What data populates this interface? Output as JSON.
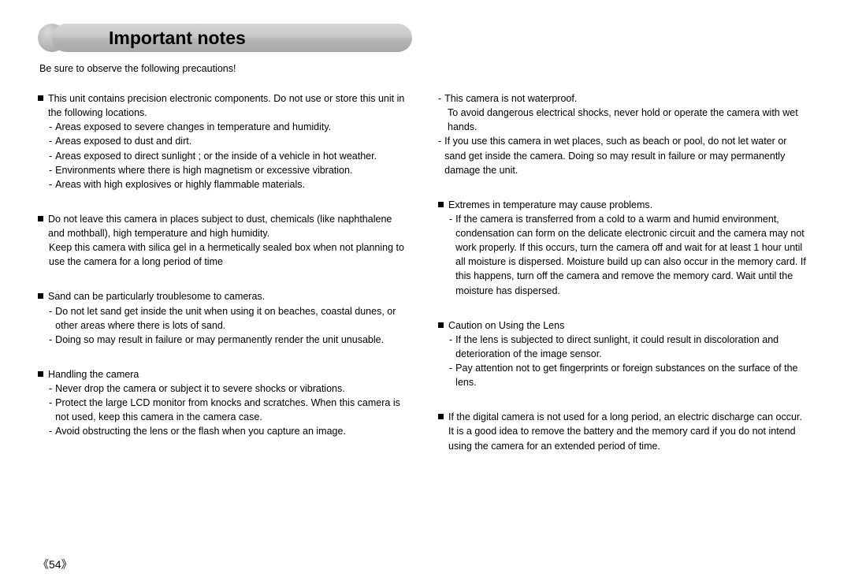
{
  "title": "Important notes",
  "intro": "Be sure to observe the following precautions!",
  "pageNumber": "《54》",
  "left": {
    "sections": [
      {
        "head": "This unit contains precision electronic components. Do not use or store this unit in the following locations.",
        "subs": [
          "Areas exposed to severe changes in temperature and humidity.",
          "Areas exposed to dust and dirt.",
          "Areas exposed to direct sunlight ; or the inside of a vehicle in hot weather.",
          "Environments where there is high magnetism or excessive vibration.",
          "Areas with high explosives or highly flammable materials."
        ]
      },
      {
        "head": "Do not leave this camera in places subject to dust, chemicals (like naphthalene and mothball), high temperature and high humidity.",
        "tail": "Keep this camera with silica gel in a hermetically sealed box when not planning to use the camera for a long period of time",
        "subs": []
      },
      {
        "head": "Sand can be particularly troublesome to cameras.",
        "subs": [
          "Do not let sand get inside the unit when using it on beaches, coastal dunes, or other areas where there is lots of sand.",
          "Doing so may result in failure or may permanently render the unit unusable."
        ]
      },
      {
        "head": "Handling the camera",
        "subs": [
          "Never drop the camera or subject it to severe shocks or vibrations.",
          "Protect the large LCD monitor from knocks and scratches. When this camera is not used, keep this camera in the camera case.",
          "Avoid obstructing the lens or the flash when you capture an image."
        ]
      }
    ]
  },
  "right": {
    "leadingSubs": [
      "This camera is not waterproof."
    ],
    "leadingTail": "To avoid dangerous electrical shocks, never hold or operate the camera with wet hands.",
    "leadingSubs2": [
      "If you use this camera in wet places, such as beach or pool, do not let water or sand get inside the camera. Doing so may result in failure or may permanently damage the unit."
    ],
    "sections": [
      {
        "head": "Extremes in temperature may cause problems.",
        "subs": [
          "If the camera is transferred from a cold to a warm and humid environment, condensation can form on the delicate electronic circuit and the camera may not work properly. If this occurs, turn the camera off and wait for at least 1 hour until all moisture is dispersed. Moisture build up can also occur in the memory card. If this happens, turn off the camera and remove the memory card. Wait until the moisture has dispersed."
        ]
      },
      {
        "head": "Caution on Using the Lens",
        "subs": [
          "If the lens is subjected to direct sunlight, it could result in discoloration and deterioration of the image sensor.",
          "Pay attention not to get fingerprints or foreign substances on the surface of the lens."
        ]
      },
      {
        "head": "If the digital camera is not used for a long period, an electric discharge can occur. It is a good idea to remove the battery and the memory card if you do not intend using the camera for an extended period of time.",
        "subs": []
      }
    ]
  }
}
